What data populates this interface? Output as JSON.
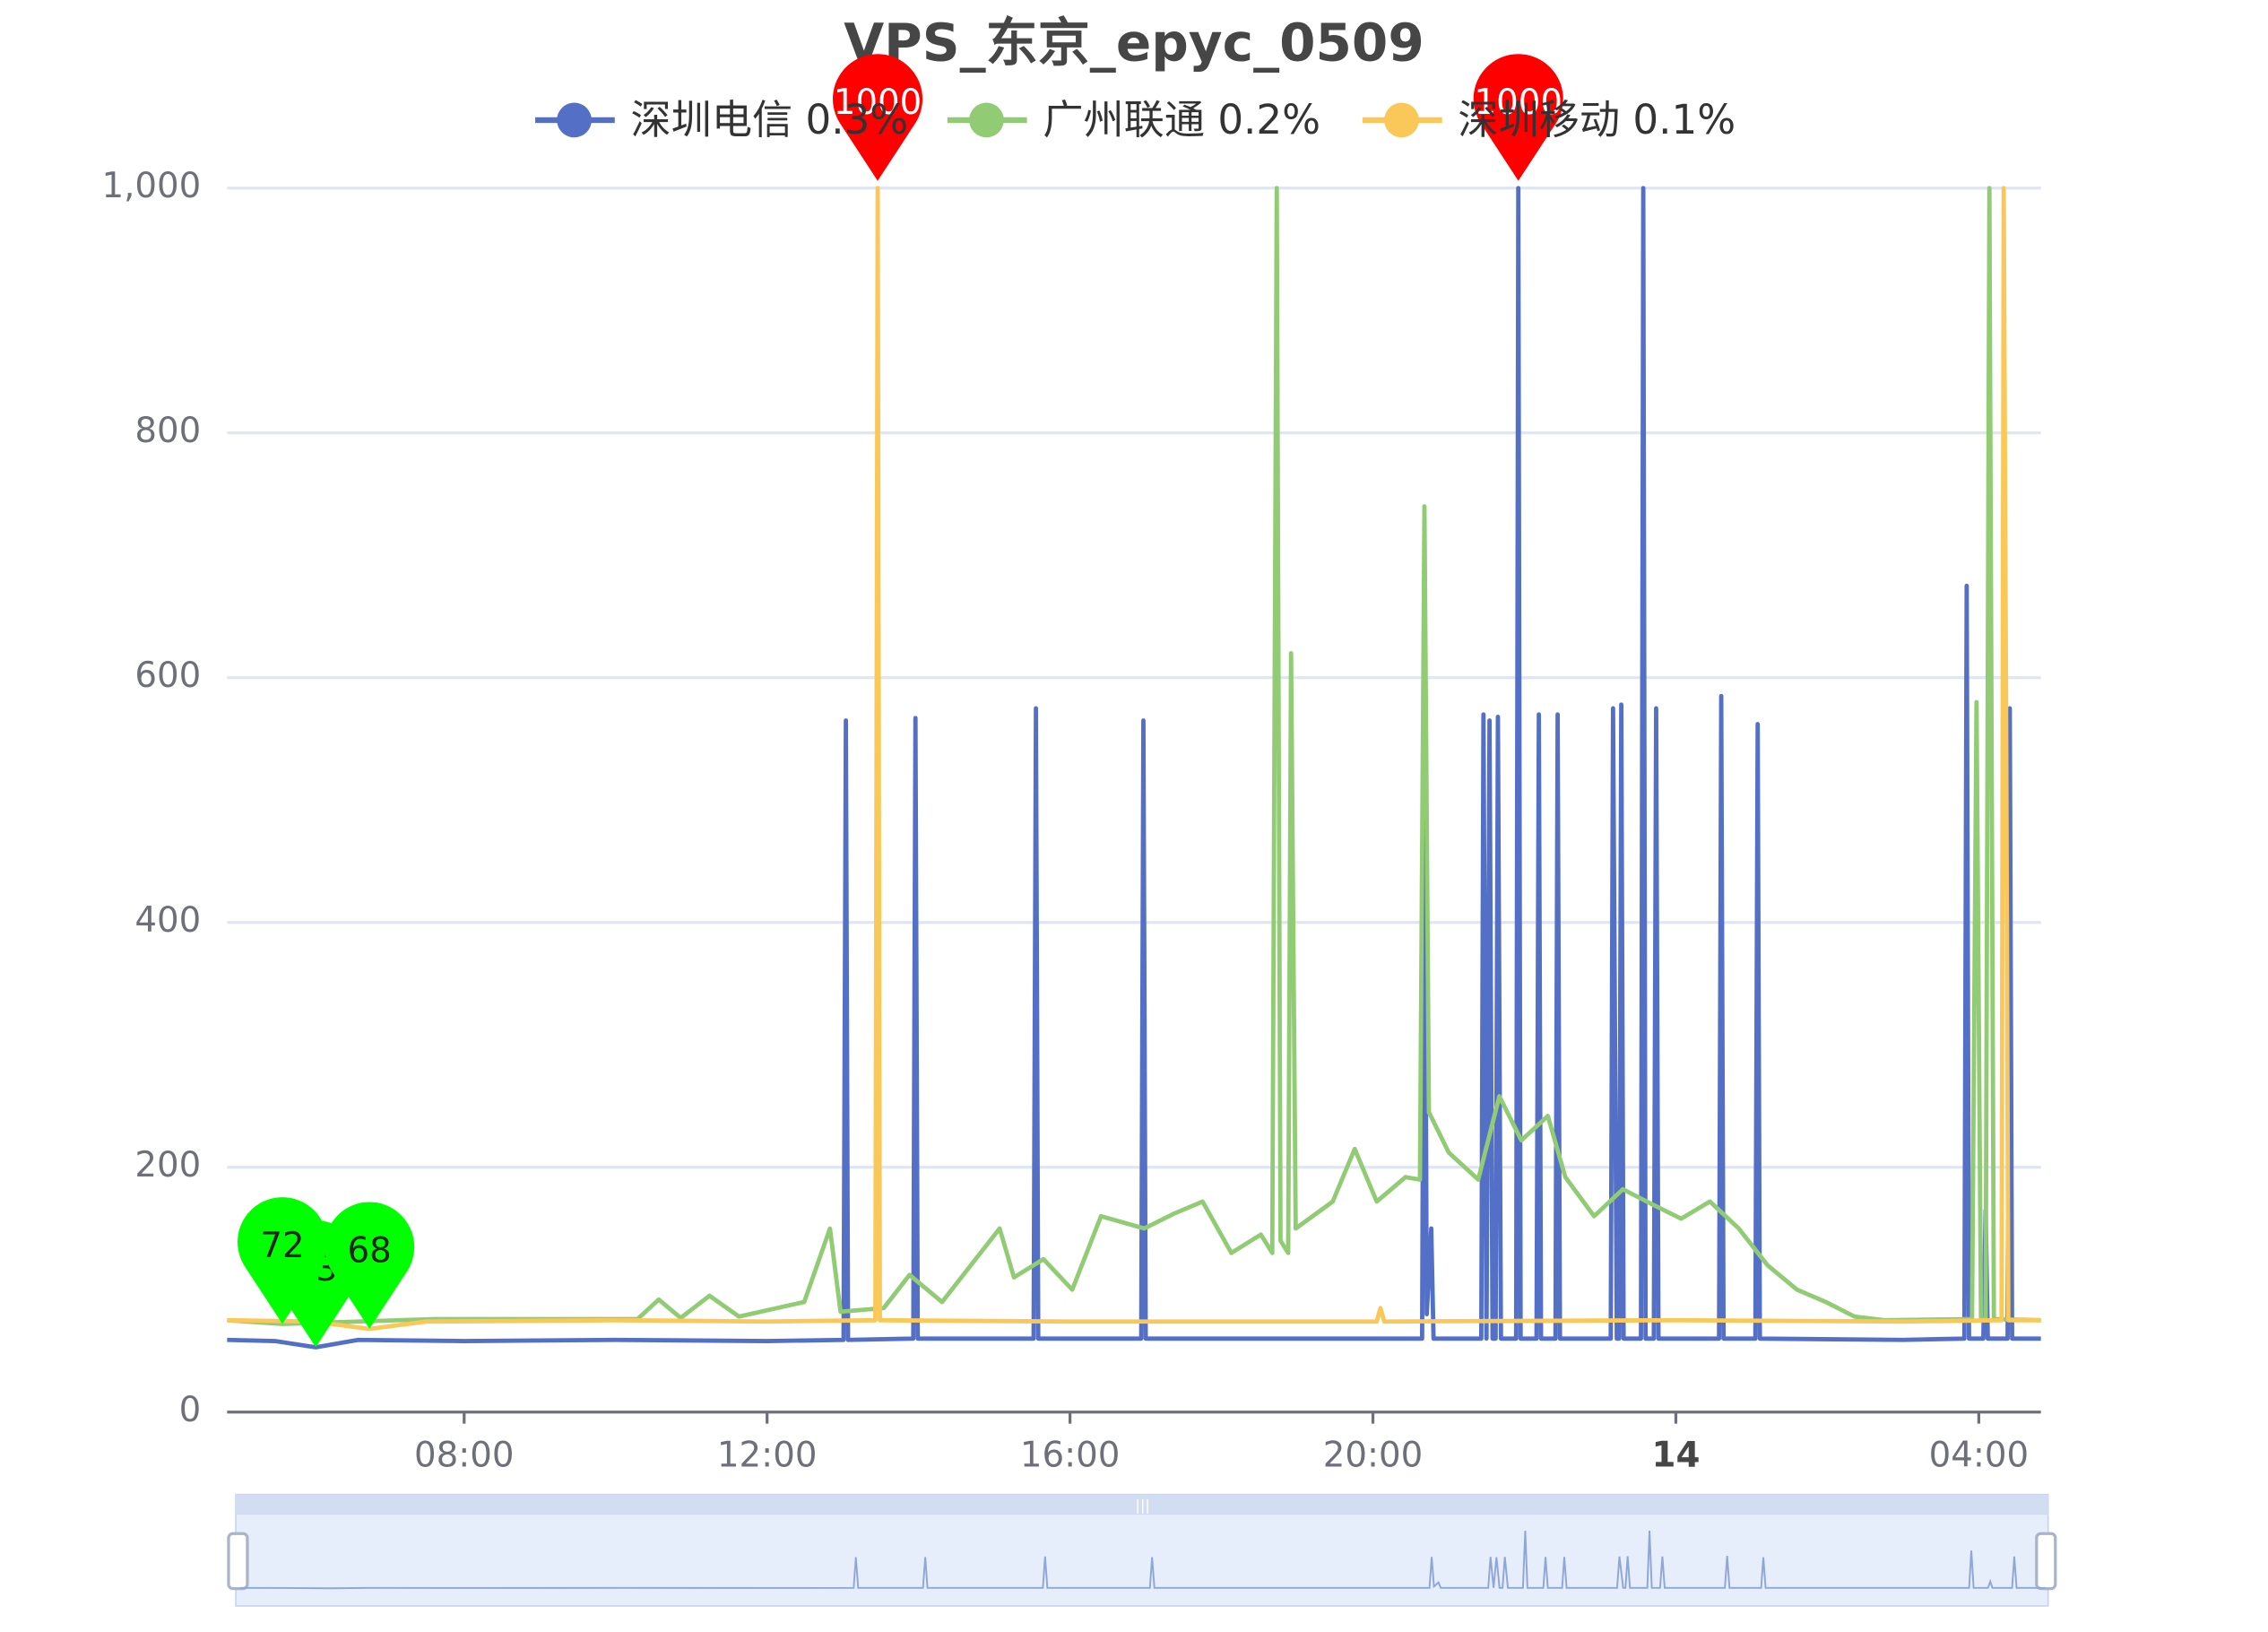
{
  "chart_data": {
    "type": "line",
    "title": "VPS_东京_epyc_0509",
    "xlim": [
      4.87,
      28.82
    ],
    "xticks": [
      {
        "value": 8,
        "label": "08:00"
      },
      {
        "value": 12,
        "label": "12:00"
      },
      {
        "value": 16,
        "label": "16:00"
      },
      {
        "value": 20,
        "label": "20:00"
      },
      {
        "value": 24,
        "label": "14"
      },
      {
        "value": 28,
        "label": "04:00"
      }
    ],
    "ylim": [
      0,
      1000
    ],
    "yticks": [
      0,
      200,
      400,
      600,
      800,
      {
        "value": 1000,
        "label": "1,000"
      }
    ],
    "grid": true,
    "legend": "top",
    "max_color": "#ff0000",
    "min_color": "#00ff00",
    "series": [
      {
        "name": "深圳电信 0.3%",
        "color": "#5470c6",
        "x": [
          4.87,
          5.5,
          6.04,
          6.6,
          8,
          10,
          12,
          13.01,
          13.04,
          13.07,
          13.93,
          13.96,
          13.99,
          15.52,
          15.55,
          15.58,
          16.94,
          16.97,
          17.0,
          19,
          20.65,
          20.68,
          20.71,
          20.77,
          20.8,
          21.43,
          21.46,
          21.5,
          21.54,
          21.58,
          21.62,
          21.65,
          21.69,
          21.89,
          21.92,
          21.95,
          22.16,
          22.19,
          22.22,
          22.41,
          22.44,
          22.47,
          23.14,
          23.17,
          23.22,
          23.25,
          23.28,
          23.31,
          23.54,
          23.57,
          23.6,
          23.71,
          23.74,
          23.77,
          24.57,
          24.6,
          24.63,
          25.05,
          25.08,
          25.11,
          27,
          27.81,
          27.84,
          27.87,
          28.06,
          28.09,
          28.12,
          28.38,
          28.41,
          28.44,
          28.82
        ],
        "values": [
          59,
          58,
          53,
          59,
          58,
          59,
          58,
          59,
          565,
          59,
          60,
          567,
          60,
          60,
          575,
          60,
          60,
          565,
          60,
          60,
          60,
          570,
          80,
          150,
          60,
          60,
          570,
          60,
          565,
          60,
          60,
          568,
          60,
          60,
          1000,
          60,
          60,
          570,
          60,
          60,
          570,
          60,
          60,
          575,
          60,
          60,
          578,
          60,
          60,
          1000,
          60,
          60,
          575,
          60,
          60,
          585,
          60,
          60,
          562,
          60,
          59,
          60,
          675,
          60,
          60,
          165,
          60,
          60,
          575,
          60,
          60
        ],
        "markpoints": [
          {
            "kind": "max",
            "x": 21.92,
            "value": 1000
          },
          {
            "kind": "min",
            "x": 6.04,
            "value": 53
          }
        ]
      },
      {
        "name": "广州联通 0.2%",
        "color": "#91cc75",
        "x": [
          4.87,
          5.6,
          7.61,
          10.29,
          10.57,
          10.86,
          11.24,
          11.63,
          12.49,
          12.83,
          12.97,
          13.54,
          13.88,
          14.31,
          15.07,
          15.26,
          15.65,
          16.03,
          16.41,
          16.98,
          17.37,
          17.75,
          18.13,
          18.52,
          18.67,
          18.73,
          18.78,
          18.88,
          18.92,
          18.98,
          19.47,
          19.76,
          20.05,
          20.43,
          20.62,
          20.68,
          20.74,
          21.0,
          21.39,
          21.67,
          21.96,
          22.31,
          22.54,
          22.92,
          23.3,
          23.68,
          24.07,
          24.45,
          24.83,
          25.21,
          25.6,
          25.98,
          26.36,
          26.75,
          27.91,
          27.97,
          28.03,
          28.09,
          28.14,
          28.2,
          28.82
        ],
        "values": [
          75,
          72,
          76,
          76,
          92,
          77,
          95,
          78,
          90,
          150,
          82,
          85,
          112,
          90,
          150,
          110,
          125,
          100,
          160,
          150,
          162,
          172,
          130,
          145,
          130,
          1000,
          140,
          130,
          620,
          150,
          172,
          215,
          172,
          192,
          190,
          740,
          245,
          212,
          190,
          258,
          222,
          242,
          192,
          160,
          182,
          170,
          158,
          172,
          150,
          120,
          100,
          90,
          78,
          75,
          76,
          580,
          76,
          76,
          1000,
          76,
          75
        ],
        "markpoints": [
          {
            "kind": "min",
            "x": 5.6,
            "value": 72
          }
        ]
      },
      {
        "name": "深圳移动 0.1%",
        "color": "#fac858",
        "x": [
          4.87,
          6.0,
          6.75,
          7.5,
          10,
          12,
          13.43,
          13.46,
          13.49,
          16,
          20.05,
          20.1,
          20.15,
          24,
          27,
          28.3,
          28.33,
          28.36,
          28.39,
          28.82
        ],
        "values": [
          75,
          74,
          68,
          74,
          75,
          74,
          75,
          1000,
          75,
          74,
          74,
          85,
          74,
          75,
          74,
          75,
          1000,
          590,
          75,
          75
        ],
        "markpoints": [
          {
            "kind": "max",
            "x": 13.46,
            "value": 1000
          },
          {
            "kind": "min",
            "x": 6.75,
            "value": 68
          }
        ]
      }
    ]
  }
}
